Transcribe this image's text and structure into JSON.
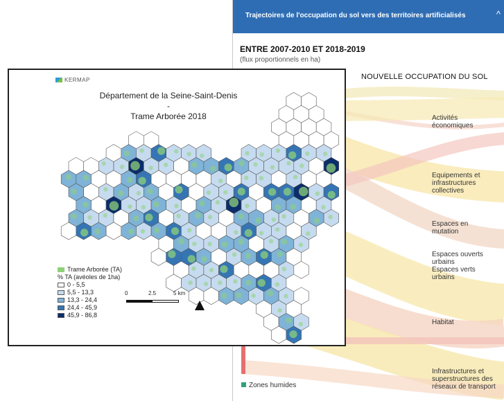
{
  "panel": {
    "title": "Trajectoires de l'occupation du sol vers des territoires artificialisés",
    "chevron": "^",
    "period": "ENTRE 2007-2010 ET 2018-2019",
    "flux_note": "(flux proportionnels en ha)",
    "column_heading": "NOUVELLE OCCUPATION DU SOL",
    "categories": [
      {
        "label": "Activités économiques"
      },
      {
        "label": "Equipements et infrastructures collectives"
      },
      {
        "label": "Espaces en mutation"
      },
      {
        "label": "Espaces ouverts urbains"
      },
      {
        "label": "Espaces verts urbains"
      },
      {
        "label": "Habitat"
      },
      {
        "label": "Infrastructures et superstructures des réseaux de transport"
      }
    ],
    "source_label": "Zones humides",
    "header_color": "#2e6db4",
    "source_color": "#2ea37a"
  },
  "map": {
    "logo": "KERMAP",
    "title_line1": "Département de la Seine-Saint-Denis",
    "title_sep": "-",
    "title_line2": "Trame Arborée 2018",
    "legend": {
      "ta_label": "Trame Arborée (TA)",
      "pct_label": "% TA (avéoles de 1ha)",
      "classes": [
        {
          "range": "0 - 5,5",
          "color": "#ffffff"
        },
        {
          "range": "5,5 - 13,3",
          "color": "#c6dbef"
        },
        {
          "range": "13,3 - 24,4",
          "color": "#7fb3d8"
        },
        {
          "range": "24,4 - 45,9",
          "color": "#3575b4"
        },
        {
          "range": "45,9 - 86,8",
          "color": "#0b2d6b"
        }
      ]
    },
    "scale": {
      "l0": "0",
      "l1": "2.5",
      "l2": "5 km"
    },
    "ta_color": "#8fd07a"
  }
}
